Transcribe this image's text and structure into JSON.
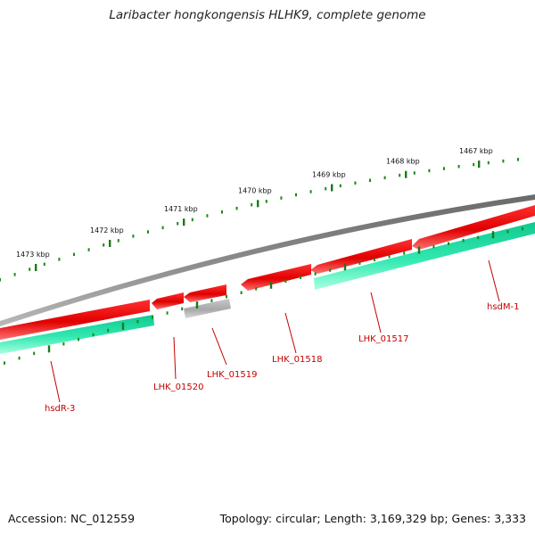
{
  "title": "Laribacter hongkongensis HLHK9, complete genome",
  "footer": {
    "accession": "Accession: NC_012559",
    "summary": "Topology: circular; Length: 3,169,329 bp; Genes: 3,333"
  },
  "ruler": [
    "1467 kbp",
    "1468 kbp",
    "1469 kbp",
    "1470 kbp",
    "1471 kbp",
    "1472 kbp",
    "1473 kbp"
  ],
  "genes": {
    "hsdM1": "hsdM-1",
    "lhk01517": "LHK_01517",
    "lhk01518": "LHK_01518",
    "lhk01519": "LHK_01519",
    "lhk01520": "LHK_01520",
    "hsdR3": "hsdR-3"
  },
  "colors": {
    "backbone": "#808080",
    "forward_cds": "#e00000",
    "gene_track": "#20e0a0",
    "pseudo": "#b0b0b0",
    "tick_major": "#1a7a1a",
    "tick_minor": "#1a8a1a",
    "label": "#c40000"
  }
}
